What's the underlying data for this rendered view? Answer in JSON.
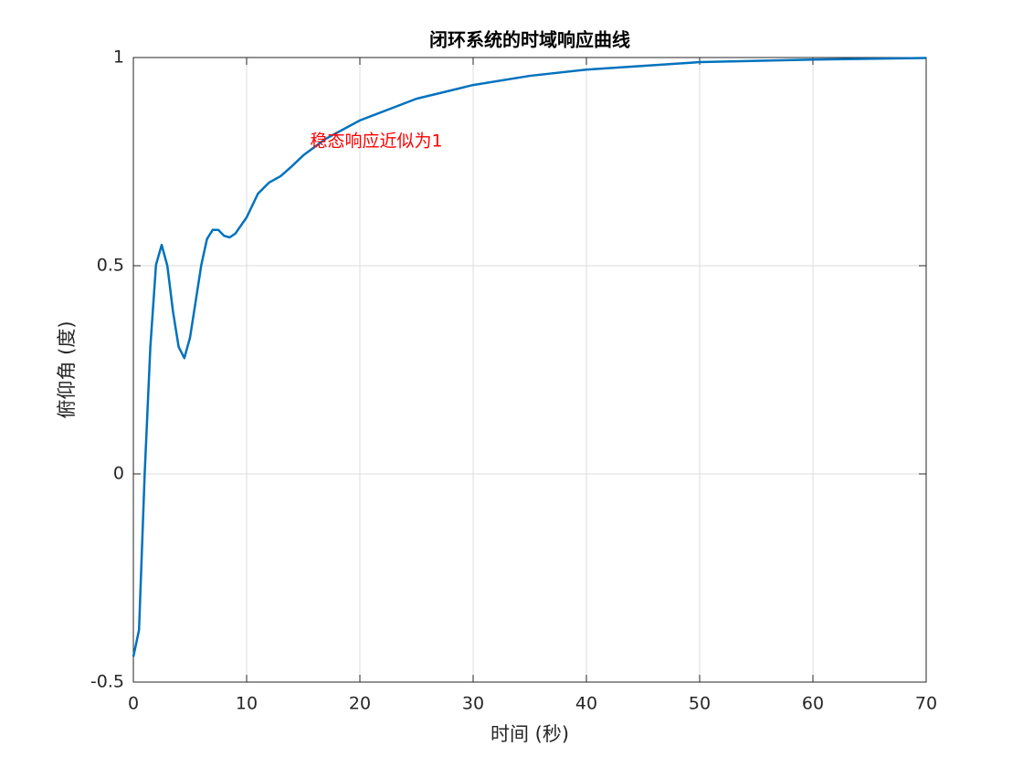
{
  "chart_data": {
    "type": "line",
    "title": "闭环系统的时域响应曲线",
    "xlabel": "时间 (秒)",
    "ylabel": "俯仰角 (度)",
    "x": [
      0,
      0.5,
      1,
      1.5,
      2,
      2.5,
      3,
      3.5,
      4,
      4.5,
      5,
      5.5,
      6,
      6.5,
      7,
      7.5,
      8,
      8.5,
      9,
      10,
      11,
      12,
      13,
      14,
      15,
      17,
      20,
      25,
      30,
      35,
      40,
      50,
      60,
      70
    ],
    "series": [
      {
        "name": "response",
        "color": "#0072bd",
        "values": [
          -0.439,
          -0.375,
          0.0,
          0.305,
          0.502,
          0.55,
          0.5,
          0.39,
          0.305,
          0.278,
          0.327,
          0.414,
          0.502,
          0.564,
          0.586,
          0.586,
          0.572,
          0.568,
          0.577,
          0.616,
          0.673,
          0.7,
          0.715,
          0.739,
          0.765,
          0.805,
          0.849,
          0.901,
          0.934,
          0.956,
          0.971,
          0.989,
          0.995,
          0.999
        ]
      }
    ],
    "annotations": [
      {
        "text": "稳态响应近似为1",
        "x": 15.6,
        "y": 0.798,
        "color": "#ff0000"
      }
    ],
    "xlim": [
      0,
      70
    ],
    "xticks": [
      0,
      10,
      20,
      30,
      40,
      50,
      60,
      70
    ],
    "ylim": [
      -0.5,
      1
    ],
    "yticks": [
      -0.5,
      0,
      0.5,
      1
    ],
    "grid": true
  }
}
